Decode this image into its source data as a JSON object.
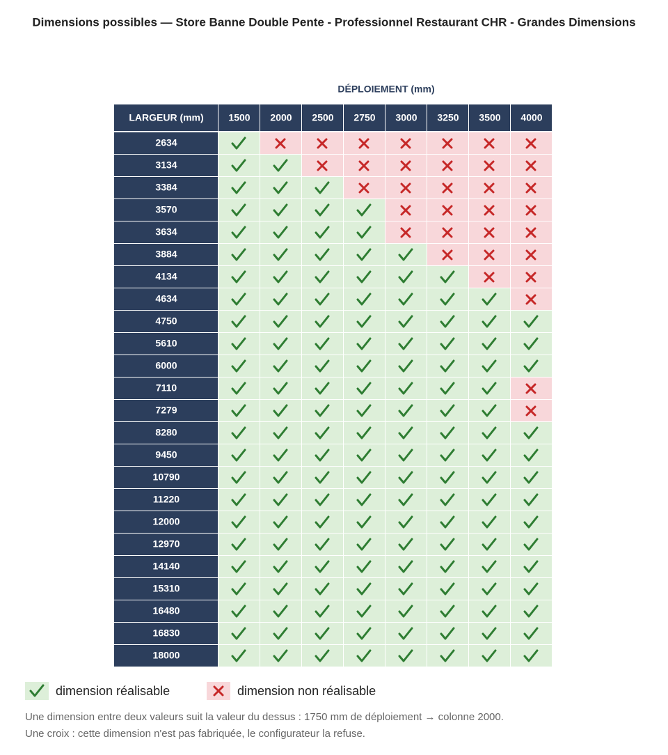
{
  "title": "Dimensions possibles — Store Banne Double Pente - Professionnel Restaurant CHR - Grandes Dimensions",
  "table": {
    "group_header": "DÉPLOIEMENT (mm)",
    "corner": "LARGEUR (mm)",
    "columns": [
      "1500",
      "2000",
      "2500",
      "2750",
      "3000",
      "3250",
      "3500",
      "4000"
    ],
    "rows": [
      {
        "label": "2634",
        "cells": [
          true,
          false,
          false,
          false,
          false,
          false,
          false,
          false
        ]
      },
      {
        "label": "3134",
        "cells": [
          true,
          true,
          false,
          false,
          false,
          false,
          false,
          false
        ]
      },
      {
        "label": "3384",
        "cells": [
          true,
          true,
          true,
          false,
          false,
          false,
          false,
          false
        ]
      },
      {
        "label": "3570",
        "cells": [
          true,
          true,
          true,
          true,
          false,
          false,
          false,
          false
        ]
      },
      {
        "label": "3634",
        "cells": [
          true,
          true,
          true,
          true,
          false,
          false,
          false,
          false
        ]
      },
      {
        "label": "3884",
        "cells": [
          true,
          true,
          true,
          true,
          true,
          false,
          false,
          false
        ]
      },
      {
        "label": "4134",
        "cells": [
          true,
          true,
          true,
          true,
          true,
          true,
          false,
          false
        ]
      },
      {
        "label": "4634",
        "cells": [
          true,
          true,
          true,
          true,
          true,
          true,
          true,
          false
        ]
      },
      {
        "label": "4750",
        "cells": [
          true,
          true,
          true,
          true,
          true,
          true,
          true,
          true
        ]
      },
      {
        "label": "5610",
        "cells": [
          true,
          true,
          true,
          true,
          true,
          true,
          true,
          true
        ]
      },
      {
        "label": "6000",
        "cells": [
          true,
          true,
          true,
          true,
          true,
          true,
          true,
          true
        ]
      },
      {
        "label": "7110",
        "cells": [
          true,
          true,
          true,
          true,
          true,
          true,
          true,
          false
        ]
      },
      {
        "label": "7279",
        "cells": [
          true,
          true,
          true,
          true,
          true,
          true,
          true,
          false
        ]
      },
      {
        "label": "8280",
        "cells": [
          true,
          true,
          true,
          true,
          true,
          true,
          true,
          true
        ]
      },
      {
        "label": "9450",
        "cells": [
          true,
          true,
          true,
          true,
          true,
          true,
          true,
          true
        ]
      },
      {
        "label": "10790",
        "cells": [
          true,
          true,
          true,
          true,
          true,
          true,
          true,
          true
        ]
      },
      {
        "label": "11220",
        "cells": [
          true,
          true,
          true,
          true,
          true,
          true,
          true,
          true
        ]
      },
      {
        "label": "12000",
        "cells": [
          true,
          true,
          true,
          true,
          true,
          true,
          true,
          true
        ]
      },
      {
        "label": "12970",
        "cells": [
          true,
          true,
          true,
          true,
          true,
          true,
          true,
          true
        ]
      },
      {
        "label": "14140",
        "cells": [
          true,
          true,
          true,
          true,
          true,
          true,
          true,
          true
        ]
      },
      {
        "label": "15310",
        "cells": [
          true,
          true,
          true,
          true,
          true,
          true,
          true,
          true
        ]
      },
      {
        "label": "16480",
        "cells": [
          true,
          true,
          true,
          true,
          true,
          true,
          true,
          true
        ]
      },
      {
        "label": "16830",
        "cells": [
          true,
          true,
          true,
          true,
          true,
          true,
          true,
          true
        ]
      },
      {
        "label": "18000",
        "cells": [
          true,
          true,
          true,
          true,
          true,
          true,
          true,
          true
        ]
      }
    ]
  },
  "legend": [
    {
      "label": "dimension réalisable",
      "available": true
    },
    {
      "label": "dimension non réalisable",
      "available": false
    }
  ],
  "notes": [
    "Une dimension entre deux valeurs suit la valeur du dessus : 1750 mm de déploiement → colonne 2000.",
    "Une croix : cette dimension n'est pas fabriquée, le configurateur la refuse."
  ]
}
